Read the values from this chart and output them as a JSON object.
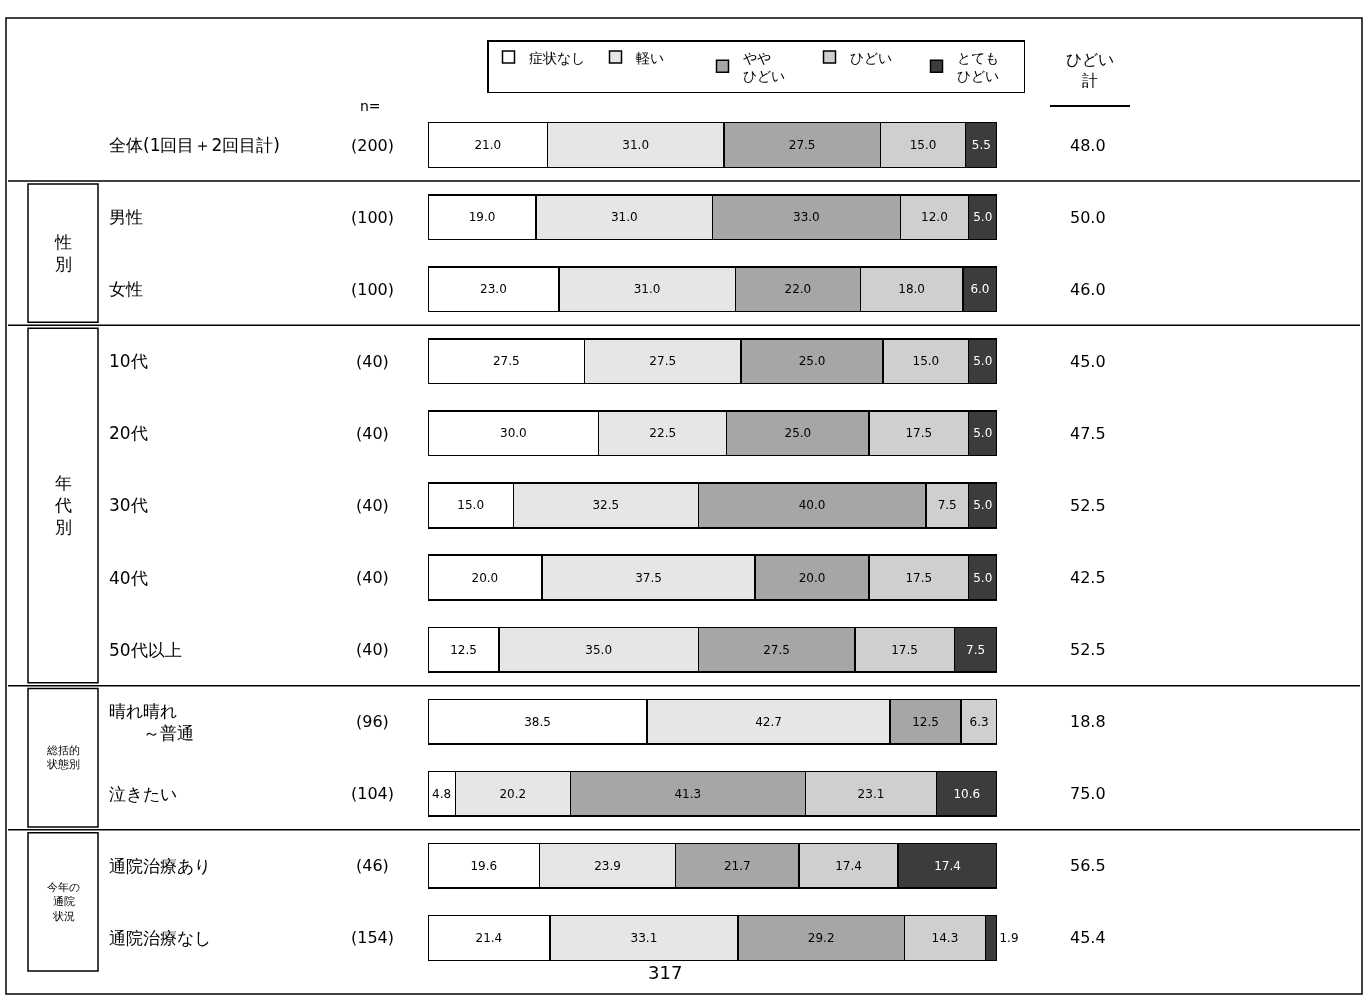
{
  "chart_data": {
    "type": "bar",
    "orientation": "horizontal",
    "stacked": true,
    "legend": "top",
    "tick_labels": "y",
    "xlim": [
      0,
      100
    ],
    "categories": [
      "全体(1回目＋2回目計)",
      "男性",
      "女性",
      "10代",
      "20代",
      "30代",
      "40代",
      "50代以上",
      "晴れ晴れ～普通",
      "泣きたい",
      "通院治療あり",
      "通院治療なし"
    ],
    "series": [
      {
        "name": "症状なし",
        "color": "#ffffff",
        "values": [
          21.0,
          19.0,
          23.0,
          27.5,
          30.0,
          15.0,
          20.0,
          12.5,
          38.5,
          4.8,
          19.6,
          21.4
        ],
        "value_labels": [
          "21.0",
          "19.0",
          "23.0",
          "27.5",
          "30.0",
          "15.0",
          "20.0",
          "12.5",
          "38.5",
          "4.8",
          "19.6",
          "21.4"
        ]
      },
      {
        "name": "軽い",
        "color": "#e6e6e6",
        "values": [
          31.0,
          31.0,
          31.0,
          27.5,
          22.5,
          32.5,
          37.5,
          35.0,
          42.7,
          20.2,
          23.9,
          33.1
        ],
        "value_labels": [
          "31.0",
          "31.0",
          "31.0",
          "27.5",
          "22.5",
          "32.5",
          "37.5",
          "35.0",
          "42.7",
          "20.2",
          "23.9",
          "33.1"
        ]
      },
      {
        "name": "ややひどい",
        "color": "#a6a6a6",
        "values": [
          27.5,
          33.0,
          22.0,
          25.0,
          25.0,
          40.0,
          20.0,
          27.5,
          12.5,
          41.3,
          21.7,
          29.2
        ],
        "value_labels": [
          "27.5",
          "33.0",
          "22.0",
          "25.0",
          "25.0",
          "40.0",
          "20.0",
          "27.5",
          "12.5",
          "41.3",
          "21.7",
          "29.2"
        ]
      },
      {
        "name": "ひどい",
        "color": "#cfcfcf",
        "values": [
          15.0,
          12.0,
          18.0,
          15.0,
          17.5,
          7.5,
          17.5,
          17.5,
          6.3,
          23.1,
          17.4,
          14.3
        ],
        "value_labels": [
          "15.0",
          "12.0",
          "18.0",
          "15.0",
          "17.5",
          "7.5",
          "17.5",
          "17.5",
          "6.3",
          "23.1",
          "17.4",
          "14.3"
        ]
      },
      {
        "name": "とてもひどい",
        "color": "#3c3c3c",
        "values": [
          5.5,
          5.0,
          6.0,
          5.0,
          5.0,
          5.0,
          5.0,
          7.5,
          null,
          10.6,
          17.4,
          1.9
        ],
        "value_labels": [
          "5.5",
          "5.0",
          "6.0",
          "5.0",
          "5.0",
          "5.0",
          "5.0",
          "7.5",
          null,
          "10.6",
          "17.4",
          "1.9"
        ]
      }
    ],
    "annotations": [
      "n=",
      "(200)",
      "(100)",
      "(100)",
      "(40)",
      "(40)",
      "(40)",
      "(40)",
      "(40)",
      "(96)",
      "(104)",
      "(46)",
      "(154)",
      "ひどい計",
      "48.0",
      "50.0",
      "46.0",
      "45.0",
      "47.5",
      "52.5",
      "42.5",
      "52.5",
      "18.8",
      "75.0",
      "56.5",
      "45.4",
      "性別",
      "年代別",
      "総括的状態別",
      "今年の通院状況",
      "317"
    ]
  }
}
